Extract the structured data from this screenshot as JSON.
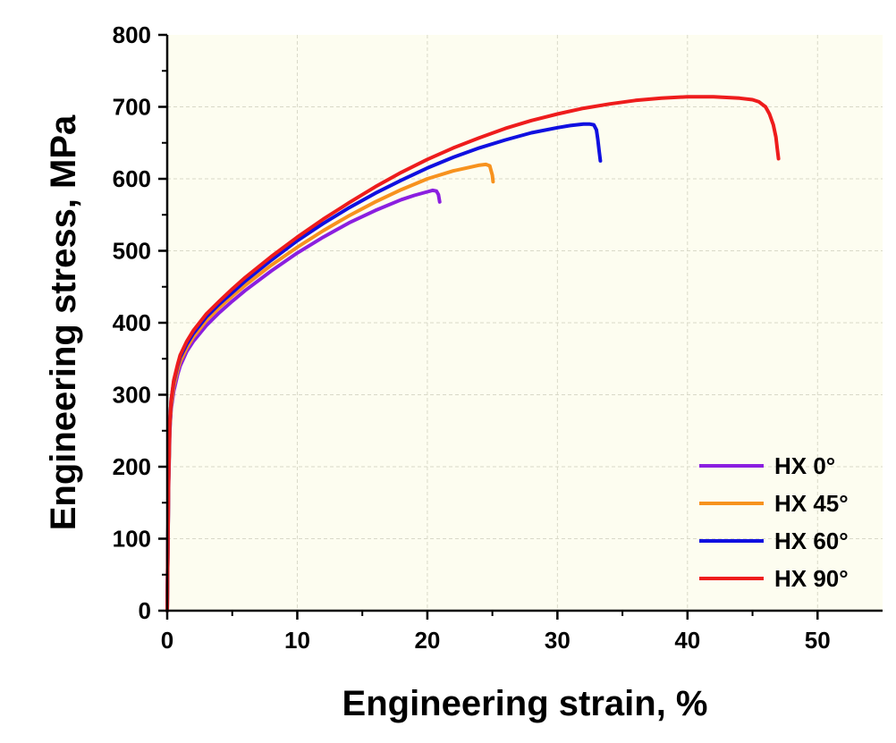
{
  "chart_data": {
    "type": "line",
    "title": "",
    "xlabel": "Engineering strain, %",
    "ylabel": "Engineering stress, MPa",
    "xlim": [
      0,
      55
    ],
    "ylim": [
      0,
      800
    ],
    "xticks": [
      0,
      10,
      20,
      30,
      40,
      50
    ],
    "yticks": [
      0,
      100,
      200,
      300,
      400,
      500,
      600,
      700,
      800
    ],
    "grid": true,
    "legend_position": "bottom-right",
    "colors": {
      "plot_background": "#fdfdf0",
      "grid": "#d9d9c8"
    },
    "series": [
      {
        "name": "HX 0°",
        "color": "#8b1fe0",
        "x": [
          0,
          0.1,
          0.2,
          0.3,
          0.5,
          0.8,
          1,
          1.5,
          2,
          3,
          4,
          5,
          6,
          8,
          10,
          12,
          14,
          16,
          18,
          19,
          20,
          20.4,
          20.7,
          20.85,
          20.95
        ],
        "y": [
          0,
          170,
          250,
          280,
          305,
          328,
          340,
          360,
          374,
          396,
          414,
          430,
          445,
          472,
          497,
          519,
          539,
          556,
          571,
          577,
          582,
          584,
          583,
          578,
          568
        ]
      },
      {
        "name": "HX 45°",
        "color": "#f7921e",
        "x": [
          0,
          0.1,
          0.2,
          0.3,
          0.5,
          0.8,
          1,
          1.5,
          2,
          3,
          4,
          5,
          6,
          8,
          10,
          12,
          14,
          16,
          18,
          20,
          22,
          23,
          24,
          24.5,
          24.8,
          25,
          25.05
        ],
        "y": [
          0,
          175,
          255,
          285,
          312,
          334,
          346,
          365,
          380,
          403,
          421,
          437,
          452,
          480,
          505,
          528,
          549,
          568,
          585,
          600,
          611,
          615,
          619,
          620,
          618,
          605,
          596
        ]
      },
      {
        "name": "HX 60°",
        "color": "#1010e0",
        "x": [
          0,
          0.1,
          0.2,
          0.3,
          0.5,
          0.8,
          1,
          1.5,
          2,
          3,
          4,
          5,
          6,
          8,
          10,
          12,
          14,
          16,
          18,
          20,
          22,
          24,
          26,
          28,
          30,
          31,
          32,
          32.5,
          32.8,
          33,
          33.1,
          33.2,
          33.3
        ],
        "y": [
          0,
          180,
          262,
          292,
          318,
          340,
          352,
          370,
          385,
          408,
          426,
          442,
          458,
          487,
          514,
          538,
          560,
          580,
          598,
          615,
          630,
          643,
          654,
          664,
          671,
          674,
          676,
          676,
          675,
          668,
          655,
          640,
          625
        ]
      },
      {
        "name": "HX 90°",
        "color": "#ee1c1c",
        "x": [
          0,
          0.1,
          0.2,
          0.3,
          0.5,
          0.8,
          1,
          1.5,
          2,
          3,
          4,
          5,
          6,
          8,
          10,
          12,
          14,
          16,
          18,
          20,
          22,
          24,
          26,
          28,
          30,
          32,
          34,
          36,
          38,
          40,
          42,
          43,
          44,
          45,
          45.5,
          46,
          46.3,
          46.6,
          46.8,
          46.9,
          47
        ],
        "y": [
          0,
          180,
          262,
          292,
          320,
          342,
          355,
          374,
          389,
          412,
          430,
          447,
          463,
          492,
          519,
          544,
          567,
          589,
          609,
          627,
          643,
          657,
          670,
          681,
          690,
          698,
          704,
          709,
          712,
          714,
          714,
          713,
          712,
          710,
          707,
          700,
          690,
          675,
          658,
          642,
          628
        ]
      }
    ]
  }
}
